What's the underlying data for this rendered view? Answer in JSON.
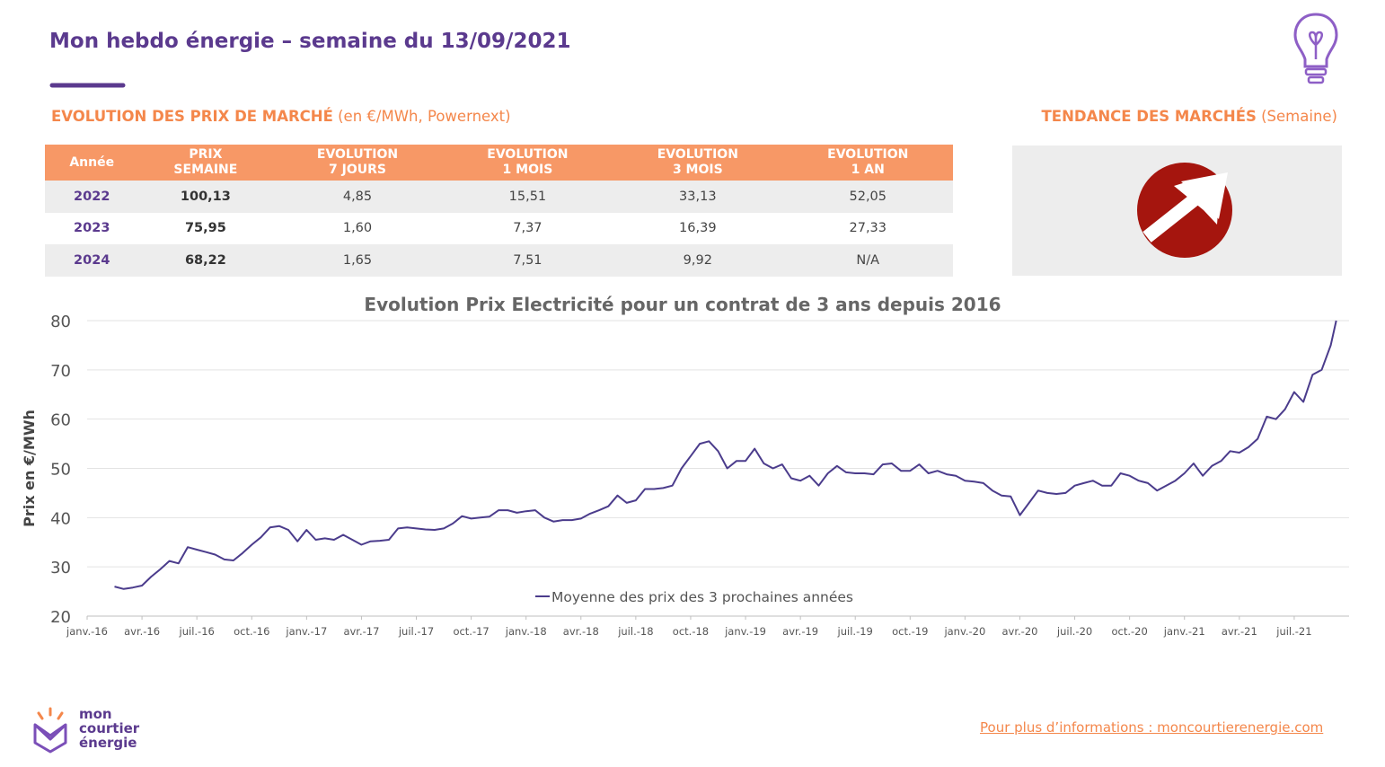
{
  "header": {
    "title": "Mon hebdo énergie – semaine du 13/09/2021"
  },
  "market": {
    "title": "EVOLUTION DES PRIX DE MARCHÉ",
    "subtitle": "(en €/MWh, Powernext)"
  },
  "trend": {
    "title": "TENDANCE DES MARCHÉS",
    "subtitle": "(Semaine)"
  },
  "table": {
    "headers": [
      [
        "Année"
      ],
      [
        "PRIX",
        "SEMAINE"
      ],
      [
        "EVOLUTION",
        "7 JOURS"
      ],
      [
        "EVOLUTION",
        "1 MOIS"
      ],
      [
        "EVOLUTION",
        "3 MOIS"
      ],
      [
        "EVOLUTION",
        "1 AN"
      ]
    ],
    "rows": [
      [
        "2022",
        "100,13",
        "4,85",
        "15,51",
        "33,13",
        "52,05"
      ],
      [
        "2023",
        "75,95",
        "1,60",
        "7,37",
        "16,39",
        "27,33"
      ],
      [
        "2024",
        "68,22",
        "1,65",
        "7,51",
        "9,92",
        "N/A"
      ]
    ]
  },
  "chart_data": {
    "type": "line",
    "title": "Evolution Prix Electricité pour un contrat de 3 ans depuis 2016",
    "y_label": "Prix en €/MWh",
    "xlim": [
      0,
      69
    ],
    "xticks": [
      {
        "value": 0,
        "label": "janv.-16"
      },
      {
        "value": 3,
        "label": "avr.-16"
      },
      {
        "value": 6,
        "label": "juil.-16"
      },
      {
        "value": 9,
        "label": "oct.-16"
      },
      {
        "value": 12,
        "label": "janv.-17"
      },
      {
        "value": 15,
        "label": "avr.-17"
      },
      {
        "value": 18,
        "label": "juil.-17"
      },
      {
        "value": 21,
        "label": "oct.-17"
      },
      {
        "value": 24,
        "label": "janv.-18"
      },
      {
        "value": 27,
        "label": "avr.-18"
      },
      {
        "value": 30,
        "label": "juil.-18"
      },
      {
        "value": 33,
        "label": "oct.-18"
      },
      {
        "value": 36,
        "label": "janv.-19"
      },
      {
        "value": 39,
        "label": "avr.-19"
      },
      {
        "value": 42,
        "label": "juil.-19"
      },
      {
        "value": 45,
        "label": "oct.-19"
      },
      {
        "value": 48,
        "label": "janv.-20"
      },
      {
        "value": 51,
        "label": "avr.-20"
      },
      {
        "value": 54,
        "label": "juil.-20"
      },
      {
        "value": 57,
        "label": "oct.-20"
      },
      {
        "value": 60,
        "label": "janv.-21"
      },
      {
        "value": 63,
        "label": "avr.-21"
      },
      {
        "value": 66,
        "label": "juil.-21"
      }
    ],
    "ylim": [
      20,
      80
    ],
    "yticks": [
      20,
      30,
      40,
      50,
      60,
      70,
      80
    ],
    "grid": true,
    "x": [
      1.5,
      2,
      2.5,
      3,
      3.5,
      4,
      4.5,
      5,
      5.5,
      6,
      6.5,
      7,
      7.5,
      8,
      8.5,
      9,
      9.5,
      10,
      10.5,
      11,
      11.5,
      12,
      12.5,
      13,
      13.5,
      14,
      14.5,
      15,
      15.5,
      16,
      16.5,
      17,
      17.5,
      18,
      18.5,
      19,
      19.5,
      20,
      20.5,
      21,
      21.5,
      22,
      22.5,
      23,
      23.5,
      24,
      24.5,
      25,
      25.5,
      26,
      26.5,
      27,
      27.5,
      28,
      28.5,
      29,
      29.5,
      30,
      30.5,
      31,
      31.5,
      32,
      32.5,
      33,
      33.5,
      34,
      34.5,
      35,
      35.5,
      36,
      36.5,
      37,
      37.5,
      38,
      38.5,
      39,
      39.5,
      40,
      40.5,
      41,
      41.5,
      42,
      42.5,
      43,
      43.5,
      44,
      44.5,
      45,
      45.5,
      46,
      46.5,
      47,
      47.5,
      48,
      48.5,
      49,
      49.5,
      50,
      50.5,
      51,
      51.5,
      52,
      52.5,
      53,
      53.5,
      54,
      54.5,
      55,
      55.5,
      56,
      56.5,
      57,
      57.5,
      58,
      58.5,
      59,
      59.5,
      60,
      60.5,
      61,
      61.5,
      62,
      62.5,
      63,
      63.5,
      64,
      64.5,
      65,
      65.5,
      66,
      66.5,
      67,
      67.5,
      68,
      68.3
    ],
    "series": [
      {
        "name": "Moyenne des prix des 3 prochaines années",
        "color": "#4b3c8c",
        "values": [
          26,
          25.5,
          25.8,
          26.2,
          28,
          29.5,
          31.2,
          30.7,
          34,
          33.5,
          33,
          32.5,
          31.5,
          31.3,
          32.8,
          34.5,
          36,
          38,
          38.3,
          37.5,
          35.2,
          37.5,
          35.5,
          35.8,
          35.5,
          36.5,
          35.5,
          34.5,
          35.2,
          35.3,
          35.5,
          37.8,
          38,
          37.8,
          37.6,
          37.5,
          37.8,
          38.8,
          40.3,
          39.8,
          40,
          40.2,
          41.5,
          41.5,
          41,
          41.3,
          41.5,
          40,
          39.2,
          39.5,
          39.5,
          39.8,
          40.8,
          41.5,
          42.3,
          44.5,
          43,
          43.5,
          45.8,
          45.8,
          46,
          46.5,
          50,
          52.5,
          55,
          55.5,
          53.5,
          50,
          51.5,
          51.5,
          54,
          51,
          50,
          50.8,
          48,
          47.5,
          48.5,
          46.5,
          49,
          50.5,
          49.2,
          49,
          49,
          48.8,
          50.8,
          51,
          49.5,
          49.5,
          50.8,
          49,
          49.5,
          48.8,
          48.5,
          47.5,
          47.3,
          47,
          45.5,
          44.5,
          44.3,
          40.5,
          43,
          45.5,
          45,
          44.8,
          45,
          46.5,
          47,
          47.5,
          46.5,
          46.5,
          49,
          48.5,
          47.5,
          47,
          45.5,
          46.5,
          47.5,
          49,
          51,
          48.5,
          50.5,
          51.5,
          53.5,
          53.2,
          54.3,
          56,
          60.5,
          60,
          62,
          65.5,
          63.5,
          69,
          70,
          75,
          80
        ]
      }
    ]
  },
  "footer": {
    "logo": [
      "mon",
      "courtier",
      "énergie"
    ],
    "link": "Pour plus d’informations : moncourtierenergie.com"
  }
}
